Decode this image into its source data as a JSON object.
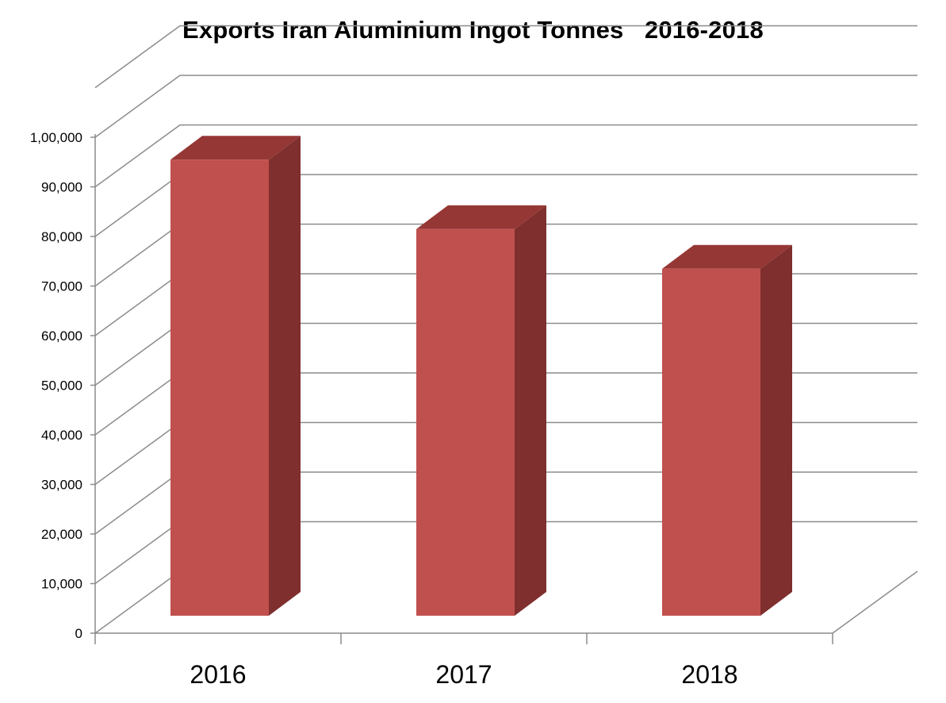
{
  "chart_data": {
    "type": "bar",
    "title": "Exports Iran Aluminium Ingot Tonnes   2016-2018",
    "categories": [
      "2016",
      "2017",
      "2018"
    ],
    "values": [
      99000,
      85000,
      77000
    ],
    "ylim": [
      0,
      100000
    ],
    "yticks": [
      0,
      10000,
      20000,
      30000,
      40000,
      50000,
      60000,
      70000,
      80000,
      90000,
      100000
    ],
    "ytick_labels": [
      "0",
      "10,000",
      "20,000",
      "30,000",
      "40,000",
      "50,000",
      "60,000",
      "70,000",
      "80,000",
      "90,000",
      "1,00,000"
    ],
    "grid": true,
    "style": "3d-column",
    "colors": {
      "bar_front": "#c0504d",
      "bar_top": "#953735",
      "bar_side": "#7f2f2e",
      "grid": "#8c8c8c",
      "axis": "#8c8c8c"
    }
  }
}
